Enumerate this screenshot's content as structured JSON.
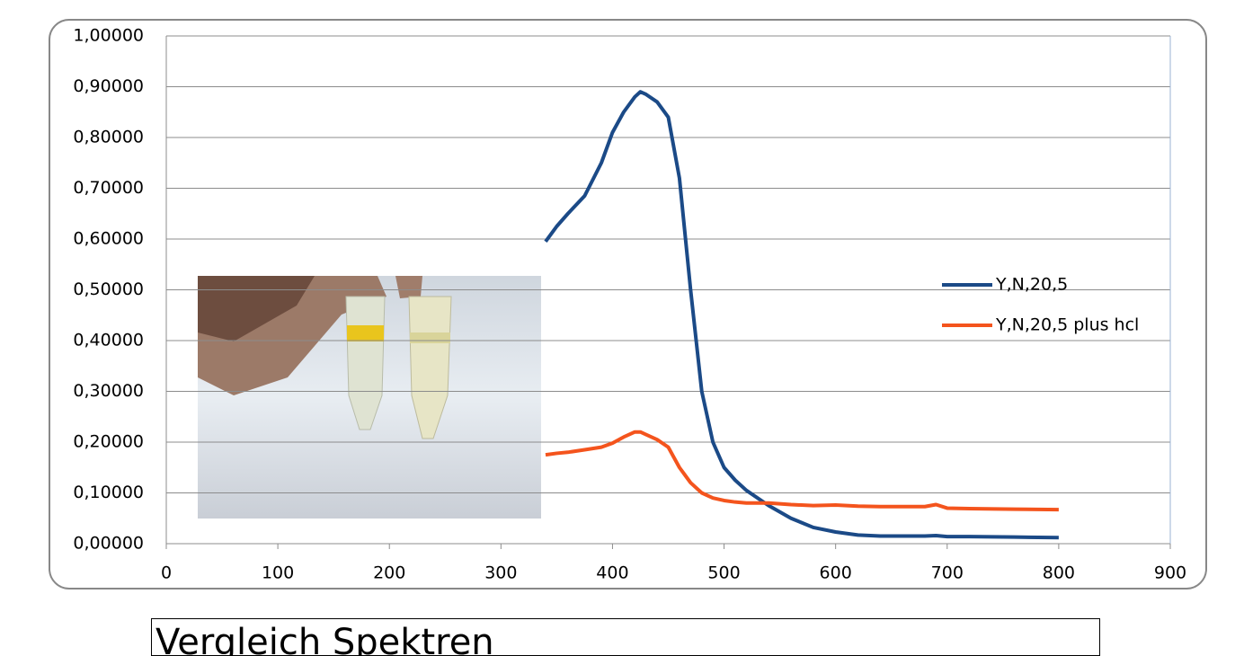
{
  "chart_data": {
    "type": "line",
    "xlim": [
      0,
      900
    ],
    "xticks": [
      0,
      100,
      200,
      300,
      400,
      500,
      600,
      700,
      800,
      900
    ],
    "ylim": [
      0,
      1
    ],
    "yticks": [
      {
        "value": 0,
        "label": "0,00000"
      },
      {
        "value": 0.1,
        "label": "0,10000"
      },
      {
        "value": 0.2,
        "label": "0,20000"
      },
      {
        "value": 0.3,
        "label": "0,30000"
      },
      {
        "value": 0.4,
        "label": "0,40000"
      },
      {
        "value": 0.5,
        "label": "0,50000"
      },
      {
        "value": 0.6,
        "label": "0,60000"
      },
      {
        "value": 0.7,
        "label": "0,70000"
      },
      {
        "value": 0.8,
        "label": "0,80000"
      },
      {
        "value": 0.9,
        "label": "0,90000"
      },
      {
        "value": 1,
        "label": "1,00000"
      }
    ],
    "grid": true,
    "legend": "right",
    "x": [
      340,
      350,
      360,
      375,
      390,
      400,
      410,
      420,
      425,
      430,
      440,
      450,
      460,
      470,
      480,
      490,
      500,
      510,
      520,
      540,
      560,
      580,
      600,
      620,
      640,
      660,
      680,
      690,
      700,
      720,
      760,
      800
    ],
    "series": [
      {
        "name": "Y,N,20,5",
        "color": "#1b4a87",
        "values": [
          0.595,
          0.625,
          0.65,
          0.685,
          0.75,
          0.81,
          0.85,
          0.88,
          0.89,
          0.885,
          0.87,
          0.84,
          0.72,
          0.5,
          0.3,
          0.2,
          0.15,
          0.125,
          0.105,
          0.075,
          0.05,
          0.032,
          0.023,
          0.017,
          0.015,
          0.015,
          0.015,
          0.016,
          0.014,
          0.014,
          0.013,
          0.012
        ]
      },
      {
        "name": "Y,N,20,5 plus hcl",
        "color": "#f4541d",
        "values": [
          0.175,
          0.178,
          0.18,
          0.185,
          0.19,
          0.198,
          0.21,
          0.22,
          0.22,
          0.215,
          0.205,
          0.19,
          0.15,
          0.12,
          0.1,
          0.09,
          0.085,
          0.082,
          0.08,
          0.08,
          0.077,
          0.075,
          0.076,
          0.074,
          0.073,
          0.073,
          0.073,
          0.077,
          0.07,
          0.069,
          0.068,
          0.067
        ]
      }
    ]
  },
  "caption": "Vergleich Spektren"
}
